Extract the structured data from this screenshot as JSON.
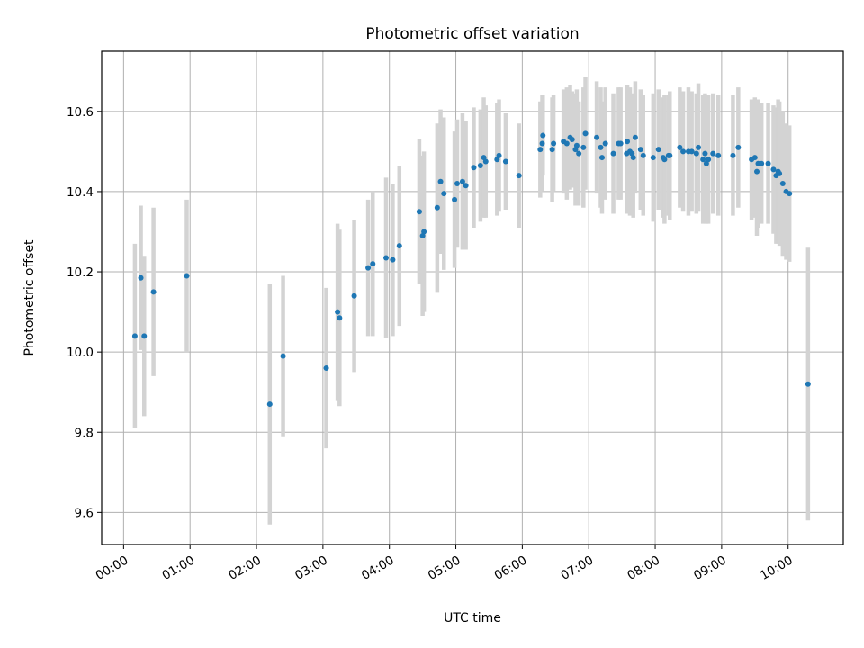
{
  "chart_data": {
    "type": "scatter",
    "title": "Photometric offset variation",
    "xlabel": "UTC time",
    "ylabel": "Photometric offset",
    "xlim_hours": [
      -0.33,
      10.83
    ],
    "ylim": [
      9.52,
      10.75
    ],
    "grid": true,
    "x_ticks": [
      {
        "value": 0,
        "label": "00:00"
      },
      {
        "value": 1,
        "label": "01:00"
      },
      {
        "value": 2,
        "label": "02:00"
      },
      {
        "value": 3,
        "label": "03:00"
      },
      {
        "value": 4,
        "label": "04:00"
      },
      {
        "value": 5,
        "label": "05:00"
      },
      {
        "value": 6,
        "label": "06:00"
      },
      {
        "value": 7,
        "label": "07:00"
      },
      {
        "value": 8,
        "label": "08:00"
      },
      {
        "value": 9,
        "label": "09:00"
      },
      {
        "value": 10,
        "label": "10:00"
      }
    ],
    "y_ticks": [
      {
        "value": 9.6,
        "label": "9.6"
      },
      {
        "value": 9.8,
        "label": "9.8"
      },
      {
        "value": 10.0,
        "label": "10.0"
      },
      {
        "value": 10.2,
        "label": "10.2"
      },
      {
        "value": 10.4,
        "label": "10.4"
      },
      {
        "value": 10.6,
        "label": "10.6"
      }
    ],
    "point_color": "#1f77b4",
    "errorbar_color": "#d3d3d3",
    "series": [
      {
        "name": "offset",
        "points": [
          [
            0.17,
            10.04,
            0.23
          ],
          [
            0.26,
            10.185,
            0.18
          ],
          [
            0.31,
            10.04,
            0.2
          ],
          [
            0.45,
            10.15,
            0.21
          ],
          [
            0.95,
            10.19,
            0.19
          ],
          [
            2.2,
            9.87,
            0.3
          ],
          [
            2.4,
            9.99,
            0.2
          ],
          [
            3.05,
            9.96,
            0.2
          ],
          [
            3.22,
            10.1,
            0.22
          ],
          [
            3.25,
            10.085,
            0.22
          ],
          [
            3.47,
            10.14,
            0.19
          ],
          [
            3.68,
            10.21,
            0.17
          ],
          [
            3.75,
            10.22,
            0.18
          ],
          [
            3.95,
            10.235,
            0.2
          ],
          [
            4.05,
            10.23,
            0.19
          ],
          [
            4.15,
            10.265,
            0.2
          ],
          [
            4.45,
            10.35,
            0.18
          ],
          [
            4.5,
            10.29,
            0.2
          ],
          [
            4.52,
            10.3,
            0.2
          ],
          [
            4.72,
            10.36,
            0.21
          ],
          [
            4.77,
            10.425,
            0.18
          ],
          [
            4.82,
            10.395,
            0.19
          ],
          [
            4.98,
            10.38,
            0.17
          ],
          [
            5.02,
            10.42,
            0.16
          ],
          [
            5.1,
            10.425,
            0.17
          ],
          [
            5.15,
            10.415,
            0.16
          ],
          [
            5.27,
            10.46,
            0.15
          ],
          [
            5.37,
            10.465,
            0.14
          ],
          [
            5.42,
            10.485,
            0.15
          ],
          [
            5.45,
            10.475,
            0.14
          ],
          [
            5.62,
            10.48,
            0.14
          ],
          [
            5.65,
            10.49,
            0.14
          ],
          [
            5.75,
            10.475,
            0.12
          ],
          [
            5.95,
            10.44,
            0.13
          ],
          [
            6.27,
            10.505,
            0.12
          ],
          [
            6.3,
            10.52,
            0.12
          ],
          [
            6.31,
            10.54,
            0.1
          ],
          [
            6.45,
            10.505,
            0.13
          ],
          [
            6.47,
            10.52,
            0.12
          ],
          [
            6.62,
            10.525,
            0.13
          ],
          [
            6.67,
            10.52,
            0.14
          ],
          [
            6.72,
            10.535,
            0.13
          ],
          [
            6.75,
            10.53,
            0.12
          ],
          [
            6.8,
            10.505,
            0.14
          ],
          [
            6.82,
            10.515,
            0.14
          ],
          [
            6.85,
            10.495,
            0.13
          ],
          [
            6.92,
            10.51,
            0.15
          ],
          [
            6.95,
            10.545,
            0.14
          ],
          [
            7.12,
            10.535,
            0.14
          ],
          [
            7.18,
            10.51,
            0.15
          ],
          [
            7.2,
            10.485,
            0.14
          ],
          [
            7.25,
            10.52,
            0.14
          ],
          [
            7.37,
            10.495,
            0.15
          ],
          [
            7.45,
            10.52,
            0.14
          ],
          [
            7.48,
            10.52,
            0.14
          ],
          [
            7.57,
            10.495,
            0.15
          ],
          [
            7.58,
            10.525,
            0.14
          ],
          [
            7.62,
            10.5,
            0.16
          ],
          [
            7.65,
            10.495,
            0.15
          ],
          [
            7.67,
            10.485,
            0.15
          ],
          [
            7.7,
            10.535,
            0.14
          ],
          [
            7.78,
            10.505,
            0.15
          ],
          [
            7.82,
            10.49,
            0.15
          ],
          [
            7.97,
            10.485,
            0.16
          ],
          [
            8.05,
            10.505,
            0.15
          ],
          [
            8.12,
            10.485,
            0.15
          ],
          [
            8.14,
            10.48,
            0.16
          ],
          [
            8.2,
            10.49,
            0.15
          ],
          [
            8.22,
            10.49,
            0.16
          ],
          [
            8.37,
            10.51,
            0.15
          ],
          [
            8.42,
            10.5,
            0.15
          ],
          [
            8.5,
            10.5,
            0.16
          ],
          [
            8.55,
            10.5,
            0.15
          ],
          [
            8.62,
            10.495,
            0.15
          ],
          [
            8.65,
            10.51,
            0.16
          ],
          [
            8.72,
            10.48,
            0.16
          ],
          [
            8.75,
            10.495,
            0.15
          ],
          [
            8.77,
            10.47,
            0.15
          ],
          [
            8.8,
            10.48,
            0.16
          ],
          [
            8.87,
            10.495,
            0.15
          ],
          [
            8.95,
            10.49,
            0.15
          ],
          [
            9.17,
            10.49,
            0.15
          ],
          [
            9.25,
            10.51,
            0.15
          ],
          [
            9.45,
            10.48,
            0.15
          ],
          [
            9.5,
            10.485,
            0.15
          ],
          [
            9.53,
            10.45,
            0.16
          ],
          [
            9.55,
            10.47,
            0.16
          ],
          [
            9.6,
            10.47,
            0.15
          ],
          [
            9.7,
            10.47,
            0.15
          ],
          [
            9.78,
            10.455,
            0.16
          ],
          [
            9.82,
            10.44,
            0.17
          ],
          [
            9.85,
            10.45,
            0.18
          ],
          [
            9.87,
            10.445,
            0.18
          ],
          [
            9.92,
            10.42,
            0.18
          ],
          [
            9.97,
            10.4,
            0.17
          ],
          [
            10.02,
            10.395,
            0.17
          ],
          [
            10.3,
            9.92,
            0.34
          ]
        ]
      }
    ]
  }
}
